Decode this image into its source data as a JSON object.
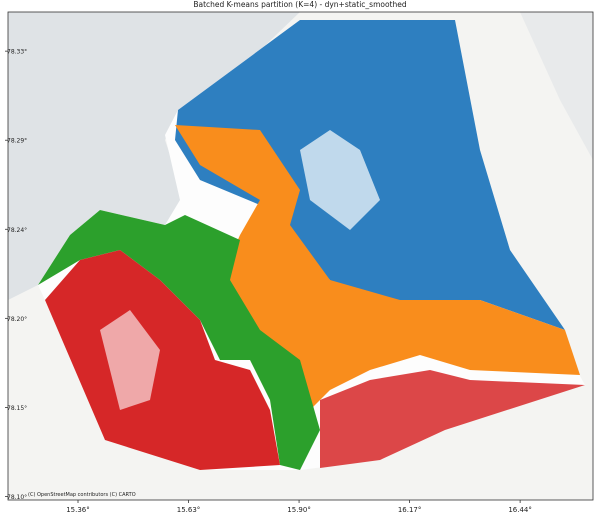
{
  "chart_data": {
    "type": "map",
    "title": "Batched K-means partition (K=4) - dyn+static_smoothed",
    "attribution": "(C) OpenStreetMap contributors (C) CARTO",
    "xlim": [
      15.189,
      16.618
    ],
    "xticks": [
      {
        "value": 15.36,
        "label": "15.36°"
      },
      {
        "value": 15.63,
        "label": "15.63°"
      },
      {
        "value": 15.9,
        "label": "15.90°"
      },
      {
        "value": 16.17,
        "label": "16.17°"
      },
      {
        "value": 16.44,
        "label": "16.44°"
      }
    ],
    "ylim": [
      78.1027,
      78.352
    ],
    "yticks": [
      {
        "value": 78.332,
        "label": "78.33°"
      },
      {
        "value": 78.2865,
        "label": "78.29°"
      },
      {
        "value": 78.241,
        "label": "78.24°"
      },
      {
        "value": 78.1955,
        "label": "78.20°"
      },
      {
        "value": 78.15,
        "label": "78.15°"
      },
      {
        "value": 78.1045,
        "label": "78.10°"
      }
    ]
  }
}
